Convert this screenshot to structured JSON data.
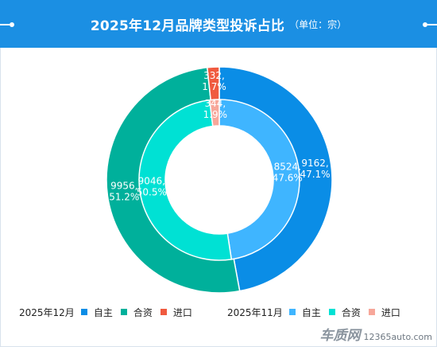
{
  "header": {
    "title": "2025年12月品牌类型投诉占比",
    "unit": "（单位：宗）"
  },
  "colors": {
    "header_bg": "#1b8fe3",
    "dec_自主": "#0a8de6",
    "dec_合资": "#00b09b",
    "dec_进口": "#f05a3f",
    "nov_自主": "#3fb5ff",
    "nov_合资": "#00e1d4",
    "nov_进口": "#f7a79a"
  },
  "chart_data": {
    "type": "pie",
    "subtype": "nested-donut",
    "title": "2025年12月品牌类型投诉占比",
    "unit": "宗",
    "categories": [
      "自主",
      "合资",
      "进口"
    ],
    "series": [
      {
        "name": "2025年12月",
        "ring": "outer",
        "values": [
          9162,
          9956,
          332
        ],
        "percent_labels": [
          "47.1%",
          "51.2%",
          "1.7%"
        ],
        "colors": [
          "#0a8de6",
          "#00b09b",
          "#f05a3f"
        ]
      },
      {
        "name": "2025年11月",
        "ring": "inner",
        "values": [
          8524,
          9046,
          344
        ],
        "percent_labels": [
          "47.6%",
          "50.5%",
          "1.9%"
        ],
        "colors": [
          "#3fb5ff",
          "#00e1d4",
          "#f7a79a"
        ]
      }
    ],
    "legend_position": "bottom"
  },
  "legend": {
    "groups": [
      {
        "label": "2025年12月",
        "items": [
          "自主",
          "合资",
          "进口"
        ],
        "colors": [
          "#0a8de6",
          "#00b09b",
          "#f05a3f"
        ]
      },
      {
        "label": "2025年11月",
        "items": [
          "自主",
          "合资",
          "进口"
        ],
        "colors": [
          "#3fb5ff",
          "#00e1d4",
          "#f7a79a"
        ]
      }
    ]
  },
  "watermark": {
    "logo": "车质网",
    "url": "12365auto.com"
  }
}
